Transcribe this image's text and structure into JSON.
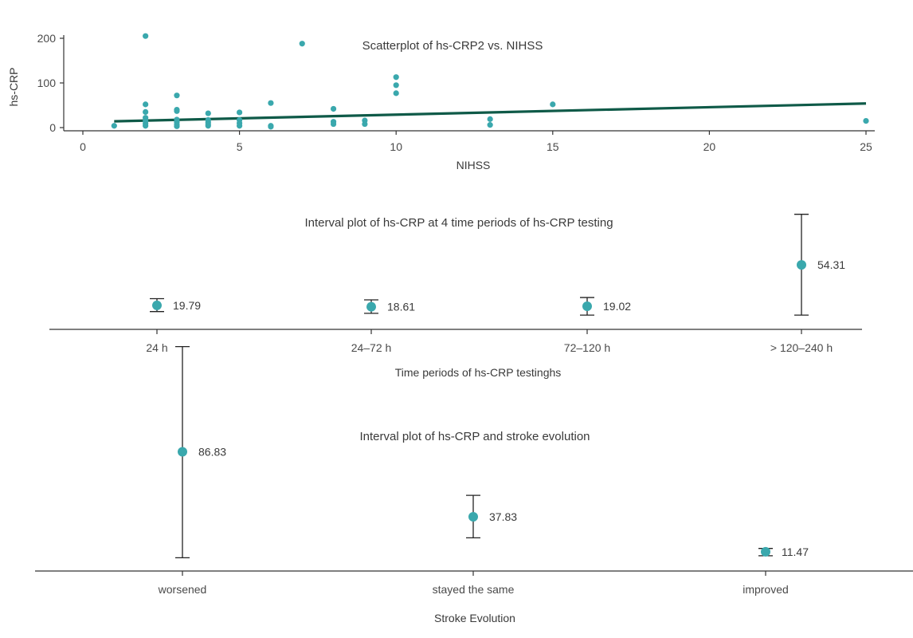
{
  "colors": {
    "point": "#3aa8ad",
    "line": "#0f5a48",
    "axis": "#333333",
    "errorbar": "#222222"
  },
  "chart_data": [
    {
      "type": "scatter",
      "title": "Scatterplot of hs-CRP2 vs. NIHSS",
      "xlabel": "NIHSS",
      "ylabel": "hs-CRP",
      "xlim": [
        0,
        25.5
      ],
      "ylim": [
        -10,
        210
      ],
      "xticks": [
        0,
        5,
        10,
        15,
        20,
        25
      ],
      "yticks": [
        0,
        100,
        200
      ],
      "points": [
        {
          "x": 1,
          "y": 4
        },
        {
          "x": 2,
          "y": 205
        },
        {
          "x": 2,
          "y": 52
        },
        {
          "x": 2,
          "y": 35
        },
        {
          "x": 2,
          "y": 22
        },
        {
          "x": 2,
          "y": 15
        },
        {
          "x": 2,
          "y": 9
        },
        {
          "x": 2,
          "y": 4
        },
        {
          "x": 3,
          "y": 72
        },
        {
          "x": 3,
          "y": 40
        },
        {
          "x": 3,
          "y": 37
        },
        {
          "x": 3,
          "y": 18
        },
        {
          "x": 3,
          "y": 12
        },
        {
          "x": 3,
          "y": 7
        },
        {
          "x": 3,
          "y": 3
        },
        {
          "x": 4,
          "y": 32
        },
        {
          "x": 4,
          "y": 17
        },
        {
          "x": 4,
          "y": 12
        },
        {
          "x": 4,
          "y": 8
        },
        {
          "x": 4,
          "y": 4
        },
        {
          "x": 5,
          "y": 34
        },
        {
          "x": 5,
          "y": 17
        },
        {
          "x": 5,
          "y": 10
        },
        {
          "x": 5,
          "y": 4
        },
        {
          "x": 6,
          "y": 55
        },
        {
          "x": 6,
          "y": 4
        },
        {
          "x": 6,
          "y": 2
        },
        {
          "x": 7,
          "y": 188
        },
        {
          "x": 8,
          "y": 42
        },
        {
          "x": 8,
          "y": 13
        },
        {
          "x": 8,
          "y": 8
        },
        {
          "x": 9,
          "y": 16
        },
        {
          "x": 9,
          "y": 8
        },
        {
          "x": 10,
          "y": 113
        },
        {
          "x": 10,
          "y": 95
        },
        {
          "x": 10,
          "y": 77
        },
        {
          "x": 13,
          "y": 19
        },
        {
          "x": 13,
          "y": 6
        },
        {
          "x": 15,
          "y": 52
        },
        {
          "x": 25,
          "y": 15
        }
      ],
      "fit_line": {
        "x": [
          1,
          25
        ],
        "y": [
          14,
          54
        ]
      }
    },
    {
      "type": "interval",
      "title": "Interval plot of hs-CRP at 4 time periods of hs-CRP testing",
      "xlabel": "Time periods of hs-CRP testinghs",
      "categories": [
        "24 h",
        "24–72 h",
        "72–120 h",
        "> 120–240 h"
      ],
      "means": [
        19.79,
        18.61,
        19.02,
        54.31
      ],
      "value_labels": [
        "19.79",
        "18.61",
        "19.02",
        "54.31"
      ],
      "lower": [
        14.5,
        13.0,
        11.5,
        11.5
      ],
      "upper": [
        25.5,
        24.5,
        26.5,
        97.5
      ],
      "ylim": [
        0,
        100
      ]
    },
    {
      "type": "interval",
      "title": "Interval plot of hs-CRP and stroke evolution",
      "xlabel": "Stroke Evolution",
      "categories": [
        "worsened",
        "stayed the same",
        "improved"
      ],
      "means": [
        86.83,
        37.83,
        11.47
      ],
      "value_labels": [
        "86.83",
        "37.83",
        "11.47"
      ],
      "lower": [
        7,
        22,
        8.5
      ],
      "upper": [
        166,
        54,
        14
      ],
      "ylim": [
        0,
        170
      ]
    }
  ]
}
